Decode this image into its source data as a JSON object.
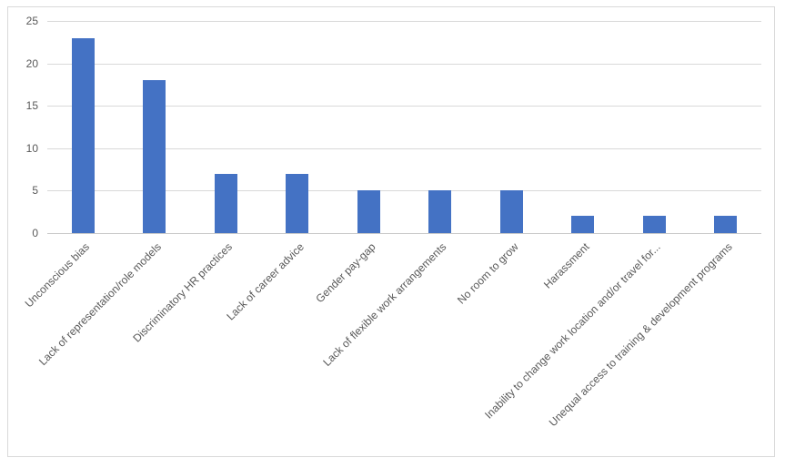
{
  "chart": {
    "bar_color": "#4472c4",
    "gridline_color": "#d9d9d9",
    "axis_line_color": "#c9c9c9",
    "frame_border_color": "#d9d9d9",
    "tick_label_color": "#595959"
  },
  "chart_data": {
    "type": "bar",
    "title": "",
    "xlabel": "",
    "ylabel": "",
    "categories": [
      "Unconscious bias",
      "Lack of representation/role models",
      "Discriminatory HR practices",
      "Lack of career advice",
      "Gender pay-gap",
      "Lack of flexible work arrangements",
      "No room to grow",
      "Harassment",
      "Inability to change work location and/or travel for...",
      "Unequal access to training & development programs"
    ],
    "values": [
      23,
      18,
      7,
      7,
      5,
      5,
      5,
      2,
      2,
      2
    ],
    "ylim": [
      0,
      25
    ],
    "yticks": [
      0,
      5,
      10,
      15,
      20,
      25
    ],
    "grid": true,
    "legend": false,
    "bar_color": "#4472c4"
  }
}
